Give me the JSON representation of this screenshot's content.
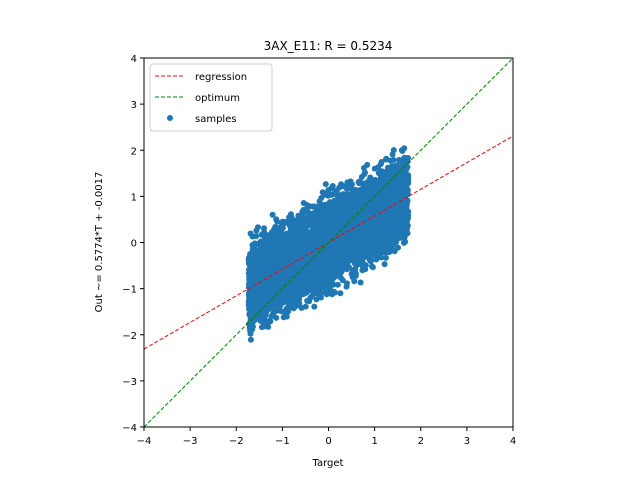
{
  "chart_data": {
    "type": "scatter",
    "title": "3AX_E11: R = 0.5234",
    "xlabel": "Target",
    "ylabel": "Out ~= 0.5774*T + -0.0017",
    "xlim": [
      -4,
      4
    ],
    "ylim": [
      -4,
      4
    ],
    "xticks": [
      -4,
      -3,
      -2,
      -1,
      0,
      1,
      2,
      3,
      4
    ],
    "yticks": [
      -4,
      -3,
      -2,
      -1,
      0,
      1,
      2,
      3,
      4
    ],
    "xtick_labels": [
      "−4",
      "−3",
      "−2",
      "−1",
      "0",
      "1",
      "2",
      "3",
      "4"
    ],
    "ytick_labels": [
      "−4",
      "−3",
      "−2",
      "−1",
      "0",
      "1",
      "2",
      "3",
      "4"
    ],
    "grid": false,
    "legend_position": "top-left",
    "lines": [
      {
        "name": "regression",
        "slope": 0.5774,
        "intercept": -0.0017,
        "color": "#ff0000",
        "style": "dashed"
      },
      {
        "name": "optimum",
        "slope": 1.0,
        "intercept": 0.0,
        "color": "#008000",
        "style": "dashed"
      }
    ],
    "scatter": {
      "name": "samples",
      "color": "#1f77b4",
      "x_range": [
        -1.73,
        1.73
      ],
      "slope": 0.5774,
      "intercept": -0.0017,
      "noise_halfwidth": 1.0,
      "n_points": 5000
    }
  }
}
